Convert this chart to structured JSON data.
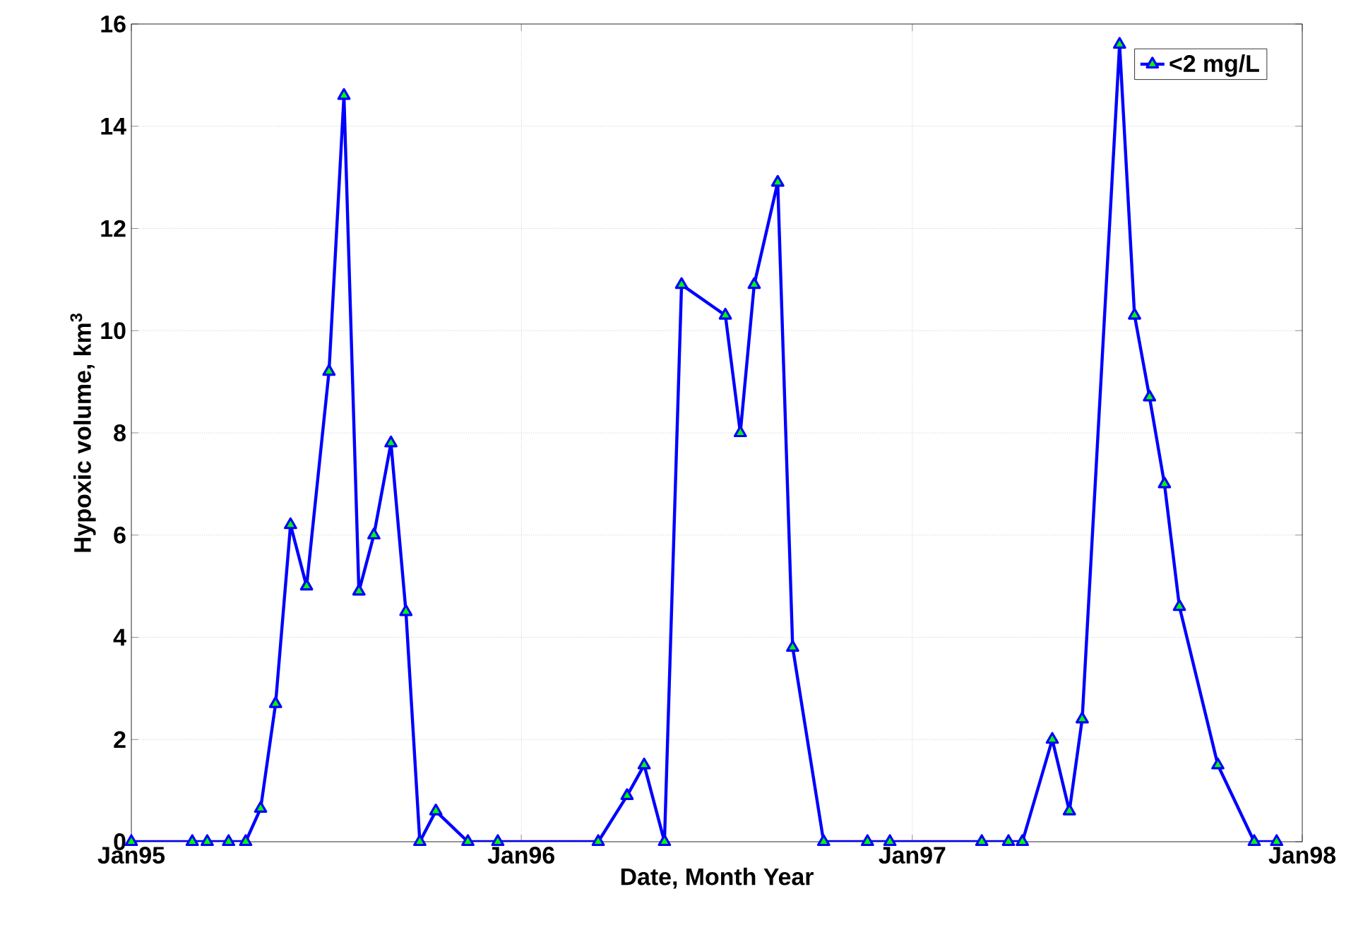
{
  "chart_data": {
    "type": "line",
    "xlabel": "Date, Month Year",
    "ylabel": "Hypoxic volume, km$^{3}$",
    "x": [
      "1995-01-01",
      "1995-02-27",
      "1995-03-13",
      "1995-04-02",
      "1995-04-18",
      "1995-05-02",
      "1995-05-16",
      "1995-05-30",
      "1995-06-14",
      "1995-07-05",
      "1995-07-19",
      "1995-08-02",
      "1995-08-16",
      "1995-09-01",
      "1995-09-15",
      "1995-09-28",
      "1995-10-13",
      "1995-11-12",
      "1995-12-10",
      "1996-03-13",
      "1996-04-09",
      "1996-04-25",
      "1996-05-14",
      "1996-05-30",
      "1996-07-10",
      "1996-07-24",
      "1996-08-06",
      "1996-08-28",
      "1996-09-11",
      "1996-10-10",
      "1996-11-20",
      "1996-12-11",
      "1997-03-07",
      "1997-04-01",
      "1997-04-14",
      "1997-05-12",
      "1997-05-28",
      "1997-06-09",
      "1997-07-14",
      "1997-07-28",
      "1997-08-11",
      "1997-08-25",
      "1997-09-08",
      "1997-10-14",
      "1997-11-17",
      "1997-12-08"
    ],
    "series": [
      {
        "name": "<2 mg/L",
        "color": "#0000ff",
        "values": [
          0,
          0,
          0,
          0,
          0,
          0.65,
          2.7,
          6.2,
          5.0,
          9.2,
          14.6,
          4.9,
          6.0,
          7.8,
          4.5,
          0,
          0.6,
          0,
          0,
          0,
          0.9,
          1.5,
          0,
          10.9,
          10.3,
          8.0,
          10.9,
          12.9,
          3.8,
          0,
          0,
          0,
          0,
          0,
          0,
          2.0,
          0.6,
          2.4,
          15.6,
          10.3,
          8.7,
          7.0,
          4.6,
          1.5,
          0,
          0
        ]
      }
    ],
    "xlim": [
      "1995-01-01",
      "1998-01-01"
    ],
    "ylim": [
      0,
      16
    ],
    "xticks": [
      {
        "value": "1995-01-01",
        "label": "Jan95"
      },
      {
        "value": "1996-01-01",
        "label": "Jan96"
      },
      {
        "value": "1997-01-01",
        "label": "Jan97"
      },
      {
        "value": "1998-01-01",
        "label": "Jan98"
      }
    ],
    "yticks": [
      0,
      2,
      4,
      6,
      8,
      10,
      12,
      14,
      16
    ],
    "grid": true,
    "legend": "top right",
    "marker": "triangle",
    "line_style": "solid"
  }
}
